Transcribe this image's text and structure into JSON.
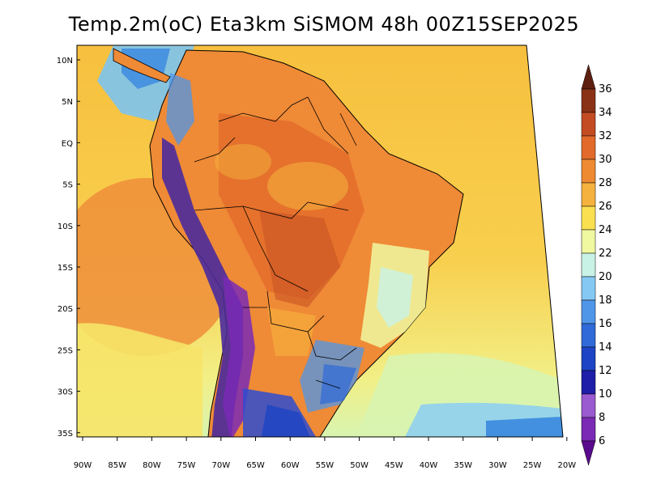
{
  "title": "Temp.2m(oC) Eta3km SiSMOM 48h 00Z15SEP2025",
  "map": {
    "lat_labels": [
      "10N",
      "5N",
      "EQ",
      "5S",
      "10S",
      "15S",
      "20S",
      "25S",
      "30S",
      "35S"
    ],
    "lon_labels": [
      "90W",
      "85W",
      "80W",
      "75W",
      "70W",
      "65W",
      "60W",
      "55W",
      "50W",
      "45W",
      "40W",
      "35W",
      "30W",
      "25W",
      "20W"
    ]
  },
  "colorbar": {
    "labels": [
      "6",
      "8",
      "10",
      "12",
      "14",
      "16",
      "18",
      "20",
      "22",
      "24",
      "26",
      "28",
      "30",
      "32",
      "34",
      "36"
    ],
    "colors": [
      "#5a0a8c",
      "#7a2ab4",
      "#9a5ad0",
      "#1e1ea8",
      "#1c44c4",
      "#2f6ad8",
      "#4f96e8",
      "#86c8f4",
      "#c8f2e6",
      "#f0f8a0",
      "#fae050",
      "#f6b23e",
      "#ee8a32",
      "#e26a2a",
      "#c44c22",
      "#8a3216",
      "#5e2010"
    ]
  },
  "colors": {
    "land_warm": "#ef8e3a",
    "land_hot": "#e2702c",
    "ocean_north": "#f7c544",
    "ocean_south": "#f6e16a",
    "andes": "#4a2a9c",
    "patagonia": "#2f4ccf"
  }
}
